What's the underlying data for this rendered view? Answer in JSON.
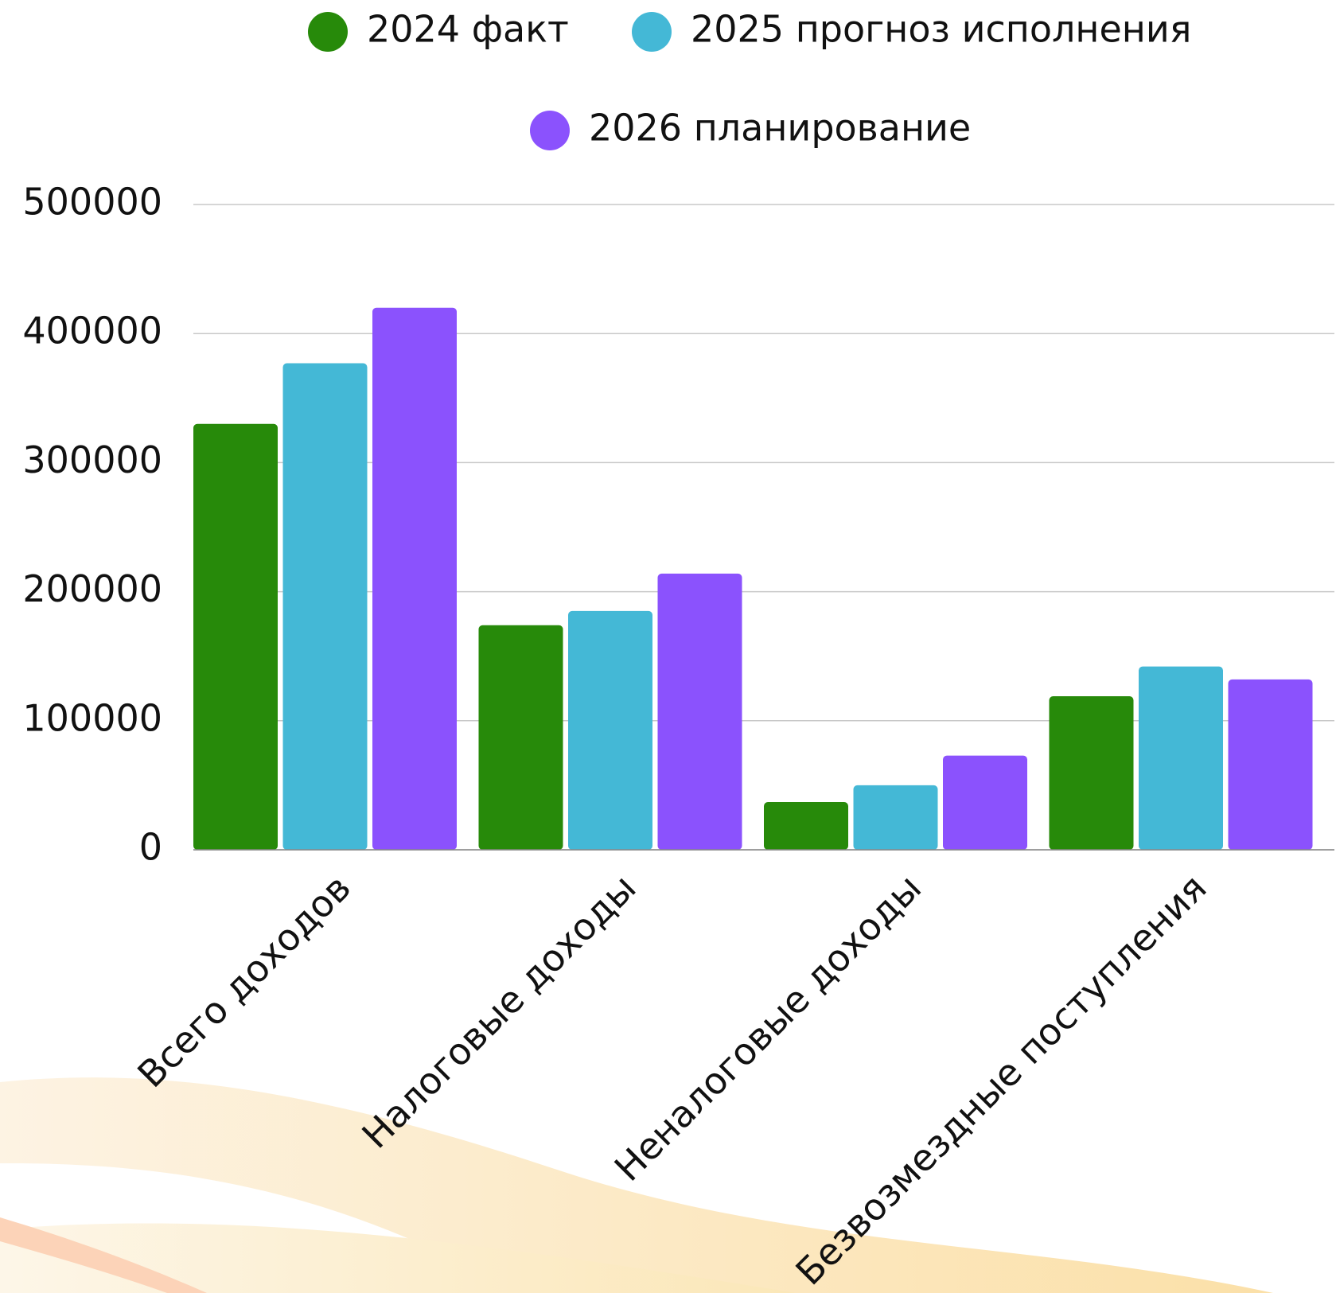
{
  "chart_data": {
    "type": "bar",
    "categories": [
      "Всего доходов",
      "Налоговые доходы",
      "Неналоговые доходы",
      "Безвозмездные поступления"
    ],
    "series": [
      {
        "name": "2024 факт",
        "color": "#278a0a",
        "values": [
          330000,
          174000,
          37000,
          119000
        ]
      },
      {
        "name": "2025 прогноз исполнения",
        "color": "#44b8d6",
        "values": [
          377000,
          185000,
          50000,
          142000
        ]
      },
      {
        "name": "2026 планирование",
        "color": "#8b52fd",
        "values": [
          420000,
          214000,
          73000,
          132000
        ]
      }
    ],
    "ylim": [
      0,
      500000
    ],
    "yticks": [
      0,
      100000,
      200000,
      300000,
      400000,
      500000
    ],
    "grid": true
  }
}
